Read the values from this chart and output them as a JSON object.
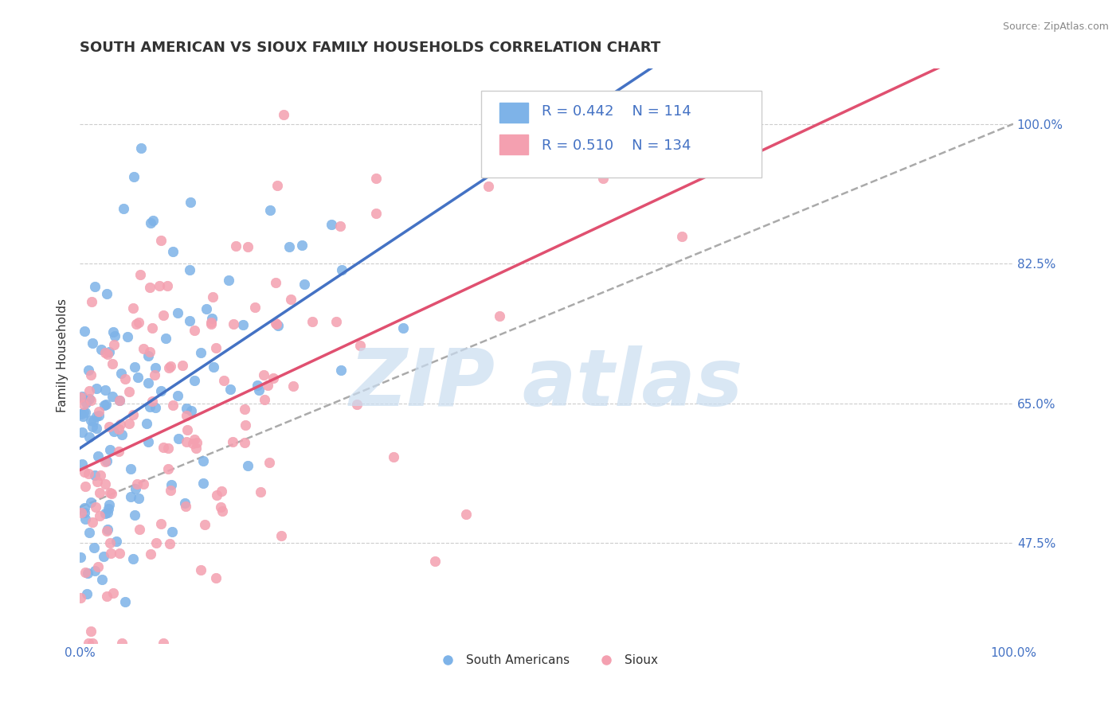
{
  "title": "SOUTH AMERICAN VS SIOUX FAMILY HOUSEHOLDS CORRELATION CHART",
  "source_text": "Source: ZipAtlas.com",
  "xlabel": "",
  "ylabel": "Family Households",
  "xlim": [
    0.0,
    100.0
  ],
  "ylim": [
    35.0,
    107.0
  ],
  "yticks": [
    47.5,
    65.0,
    82.5,
    100.0
  ],
  "xticks": [
    0.0,
    100.0
  ],
  "xtick_labels": [
    "0.0%",
    "100.0%"
  ],
  "ytick_labels": [
    "47.5%",
    "65.0%",
    "82.5%",
    "100.0%"
  ],
  "blue_color": "#7EB3E8",
  "pink_color": "#F4A0B0",
  "blue_line_color": "#4472C4",
  "pink_line_color": "#E05070",
  "gray_dash_color": "#AAAAAA",
  "legend_R_blue": "R = 0.442",
  "legend_N_blue": "N = 114",
  "legend_R_pink": "R = 0.510",
  "legend_N_pink": "N = 134",
  "legend_label_blue": "South Americans",
  "legend_label_pink": "Sioux",
  "title_fontsize": 13,
  "label_fontsize": 11,
  "tick_fontsize": 11,
  "blue_R": 0.442,
  "blue_N": 114,
  "pink_R": 0.51,
  "pink_N": 134,
  "background_color": "#FFFFFF",
  "grid_color": "#CCCCCC",
  "watermark_color": "#CADDF0",
  "seed_blue": 42,
  "seed_pink": 99
}
